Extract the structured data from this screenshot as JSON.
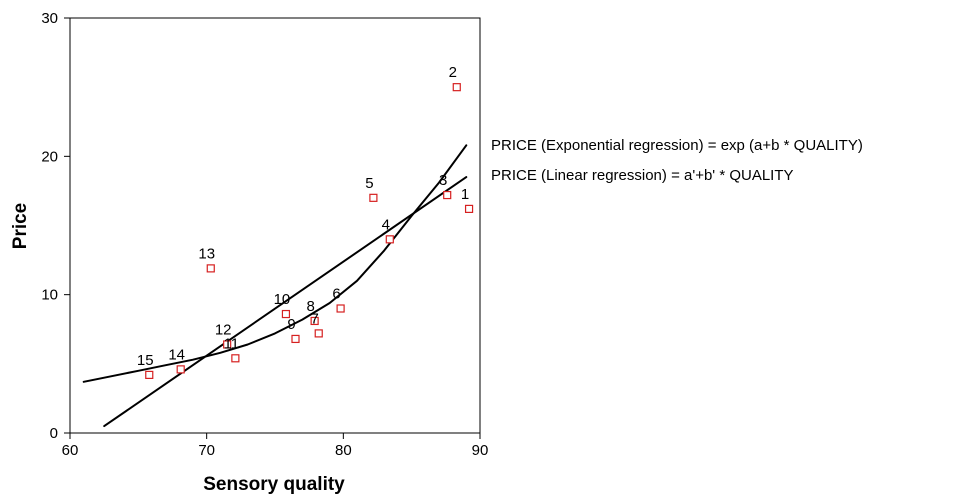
{
  "chart_data": {
    "type": "scatter",
    "xlabel": "Sensory quality",
    "ylabel": "Price",
    "xlim": [
      60,
      90
    ],
    "ylim": [
      0,
      30
    ],
    "x_ticks": [
      60,
      70,
      80,
      90
    ],
    "y_ticks": [
      0,
      10,
      20,
      30
    ],
    "grid": false,
    "marker_color": "#d62020",
    "line_color": "#000000",
    "points": [
      {
        "label": "1",
        "x": 89.2,
        "y": 16.2
      },
      {
        "label": "2",
        "x": 88.3,
        "y": 25.0
      },
      {
        "label": "3",
        "x": 87.6,
        "y": 17.2
      },
      {
        "label": "4",
        "x": 83.4,
        "y": 14.0
      },
      {
        "label": "5",
        "x": 82.2,
        "y": 17.0
      },
      {
        "label": "6",
        "x": 79.8,
        "y": 9.0
      },
      {
        "label": "7",
        "x": 78.2,
        "y": 7.2
      },
      {
        "label": "8",
        "x": 77.9,
        "y": 8.1
      },
      {
        "label": "9",
        "x": 76.5,
        "y": 6.8
      },
      {
        "label": "10",
        "x": 75.8,
        "y": 8.6
      },
      {
        "label": "11",
        "x": 72.1,
        "y": 5.4
      },
      {
        "label": "12",
        "x": 71.5,
        "y": 6.4
      },
      {
        "label": "13",
        "x": 70.3,
        "y": 11.9
      },
      {
        "label": "14",
        "x": 68.1,
        "y": 4.6
      },
      {
        "label": "15",
        "x": 65.8,
        "y": 4.2
      }
    ],
    "series": [
      {
        "name": "PRICE (Exponential regression) = exp (a+b * QUALITY)",
        "kind": "exponential",
        "x": [
          61,
          63,
          65,
          67,
          69,
          71,
          73,
          75,
          77,
          79,
          81,
          83,
          85,
          87,
          89
        ],
        "y": [
          3.7,
          4.1,
          4.5,
          4.9,
          5.3,
          5.8,
          6.4,
          7.2,
          8.2,
          9.4,
          11.0,
          13.2,
          15.7,
          18.1,
          20.8
        ]
      },
      {
        "name": "PRICE (Linear regression) = a'+b' * QUALITY",
        "kind": "linear",
        "x": [
          62.5,
          89
        ],
        "y": [
          0.5,
          18.5
        ]
      }
    ]
  }
}
